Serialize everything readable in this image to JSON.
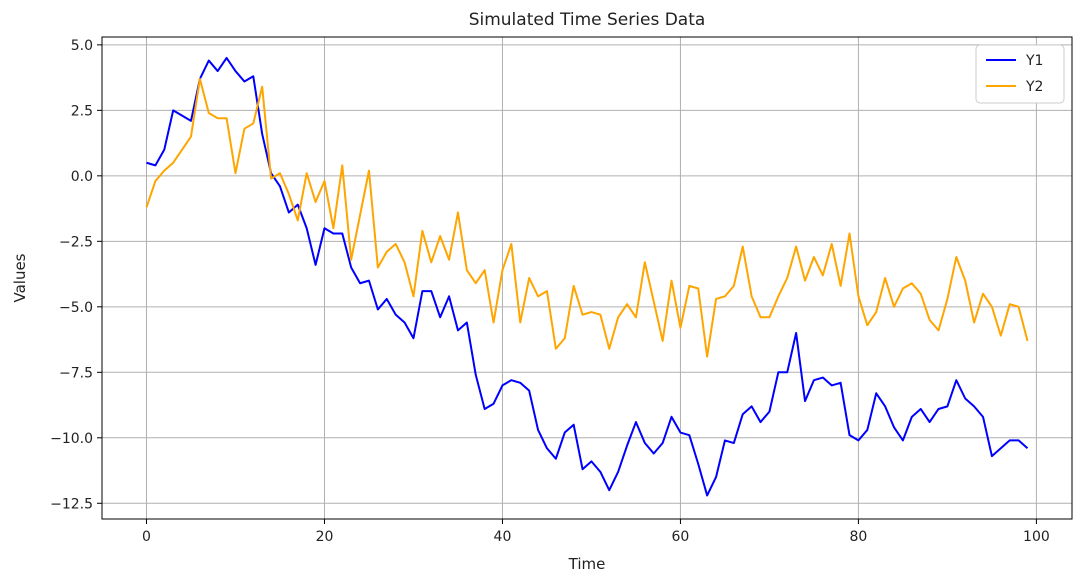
{
  "chart_data": {
    "type": "line",
    "title": "Simulated Time Series Data",
    "xlabel": "Time",
    "ylabel": "Values",
    "xlim": [
      -5,
      104
    ],
    "ylim": [
      -13.1,
      5.3
    ],
    "xticks": [
      0,
      20,
      40,
      60,
      80,
      100
    ],
    "yticks": [
      5.0,
      2.5,
      0.0,
      -2.5,
      -5.0,
      -7.5,
      -10.0,
      -12.5
    ],
    "xtick_labels": [
      "0",
      "20",
      "40",
      "60",
      "80",
      "100"
    ],
    "ytick_labels": [
      "5.0",
      "2.5",
      "0.0",
      "−2.5",
      "−5.0",
      "−7.5",
      "−10.0",
      "−12.5"
    ],
    "grid": true,
    "legend_position": "top-right",
    "x": [
      0,
      1,
      2,
      3,
      4,
      5,
      6,
      7,
      8,
      9,
      10,
      11,
      12,
      13,
      14,
      15,
      16,
      17,
      18,
      19,
      20,
      21,
      22,
      23,
      24,
      25,
      26,
      27,
      28,
      29,
      30,
      31,
      32,
      33,
      34,
      35,
      36,
      37,
      38,
      39,
      40,
      41,
      42,
      43,
      44,
      45,
      46,
      47,
      48,
      49,
      50,
      51,
      52,
      53,
      54,
      55,
      56,
      57,
      58,
      59,
      60,
      61,
      62,
      63,
      64,
      65,
      66,
      67,
      68,
      69,
      70,
      71,
      72,
      73,
      74,
      75,
      76,
      77,
      78,
      79,
      80,
      81,
      82,
      83,
      84,
      85,
      86,
      87,
      88,
      89,
      90,
      91,
      92,
      93,
      94,
      95,
      96,
      97,
      98,
      99
    ],
    "series": [
      {
        "name": "Y1",
        "color": "#0000ff",
        "values": [
          0.5,
          0.4,
          1.0,
          2.5,
          2.3,
          2.1,
          3.7,
          4.4,
          4.0,
          4.5,
          4.0,
          3.6,
          3.8,
          1.6,
          0.1,
          -0.4,
          -1.4,
          -1.1,
          -2.0,
          -3.4,
          -2.0,
          -2.2,
          -2.2,
          -3.5,
          -4.1,
          -4.0,
          -5.1,
          -4.7,
          -5.3,
          -5.6,
          -6.2,
          -4.4,
          -4.4,
          -5.4,
          -4.6,
          -5.9,
          -5.6,
          -7.6,
          -8.9,
          -8.7,
          -8.0,
          -7.8,
          -7.9,
          -8.2,
          -9.7,
          -10.4,
          -10.8,
          -9.8,
          -9.5,
          -11.2,
          -10.9,
          -11.3,
          -12.0,
          -11.3,
          -10.3,
          -9.4,
          -10.2,
          -10.6,
          -10.2,
          -9.2,
          -9.8,
          -9.9,
          -11.0,
          -12.2,
          -11.5,
          -10.1,
          -10.2,
          -9.1,
          -8.8,
          -9.4,
          -9.0,
          -7.5,
          -7.5,
          -6.0,
          -8.6,
          -7.8,
          -7.7,
          -8.0,
          -7.9,
          -9.9,
          -10.1,
          -9.7,
          -8.3,
          -8.8,
          -9.6,
          -10.1,
          -9.2,
          -8.9,
          -9.4,
          -8.9,
          -8.8,
          -7.8,
          -8.5,
          -8.8,
          -9.2,
          -10.7,
          -10.4,
          -10.1,
          -10.1,
          -10.4
        ],
        "data_values": [
          0.5,
          0.4,
          1.0,
          2.5,
          2.3,
          2.1,
          3.7,
          4.4,
          4.0,
          4.5,
          4.0,
          3.6,
          3.8,
          1.6,
          0.1,
          -0.4,
          -1.4,
          -1.1,
          -2.0,
          -3.4,
          -2.0,
          -2.2,
          -2.2,
          -3.5,
          -4.1,
          -4.0,
          -5.1,
          -4.7,
          -5.3,
          -5.6,
          -6.2,
          -4.4,
          -4.4,
          -5.4,
          -4.6,
          -5.9,
          -5.6,
          -7.6,
          -8.9,
          -8.7,
          -8.0,
          -7.8,
          -7.9,
          -8.2,
          -9.7,
          -10.4,
          -10.8,
          -9.8,
          -9.5,
          -11.2,
          -10.9,
          -11.3,
          -12.0,
          -11.3,
          -10.3,
          -9.4,
          -10.2,
          -10.6,
          -10.2,
          -9.2,
          -9.8,
          -9.9,
          -11.0,
          -12.2,
          -11.5,
          -10.1,
          -10.2,
          -9.1,
          -8.8,
          -9.4,
          -9.0,
          -7.5,
          -7.5,
          -6.0,
          -8.6,
          -7.8,
          -7.7,
          -8.0,
          -7.9,
          -9.9,
          -10.1,
          -9.7,
          -8.3,
          -8.8,
          -9.6,
          -10.1,
          -9.2,
          -8.9,
          -9.4,
          -8.9,
          -8.8,
          -7.8,
          -8.5,
          -8.8,
          -9.2,
          -10.7,
          -10.4,
          -10.1,
          -10.1,
          -10.4
        ]
      },
      {
        "name": "Y2",
        "color": "#ffa500",
        "values": [
          -1.2,
          -0.2,
          0.2,
          0.5,
          1.0,
          1.5,
          3.7,
          2.4,
          2.2,
          2.2,
          0.1,
          1.8,
          2.0,
          3.4,
          -0.1,
          0.1,
          -0.7,
          -1.7,
          0.1,
          -1.0,
          -0.2,
          -2.0,
          0.4,
          -3.2,
          -1.5,
          0.2,
          -3.5,
          -2.9,
          -2.6,
          -3.3,
          -4.6,
          -2.1,
          -3.3,
          -2.3,
          -3.2,
          -1.4,
          -3.6,
          -4.1,
          -3.6,
          -5.6,
          -3.6,
          -2.6,
          -5.6,
          -3.9,
          -4.6,
          -4.4,
          -6.6,
          -6.2,
          -4.2,
          -5.3,
          -5.2,
          -5.3,
          -6.6,
          -5.4,
          -4.9,
          -5.4,
          -3.3,
          -4.8,
          -6.3,
          -4.0,
          -5.8,
          -4.2,
          -4.3,
          -6.9,
          -4.7,
          -4.6,
          -4.2,
          -2.7,
          -4.6,
          -5.4,
          -5.4,
          -4.6,
          -3.9,
          -2.7,
          -4.0,
          -3.1,
          -3.8,
          -2.6,
          -4.2,
          -2.2,
          -4.6,
          -5.7,
          -5.2,
          -3.9,
          -5.0,
          -4.3,
          -4.1,
          -4.5,
          -5.5,
          -5.9,
          -4.7,
          -3.1,
          -4.0,
          -5.6,
          -4.5,
          -5.0,
          -6.1,
          -4.9,
          -5.0,
          -6.3
        ]
      }
    ]
  }
}
